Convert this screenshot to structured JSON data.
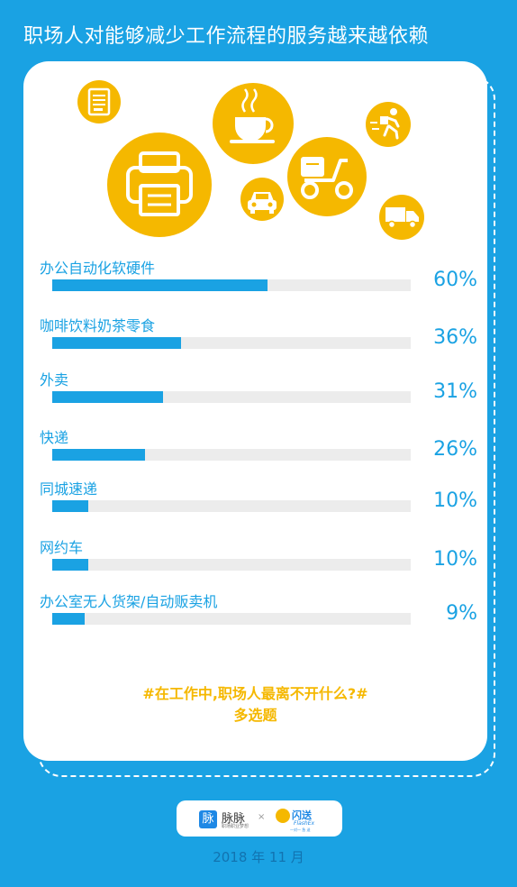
{
  "title": "职场人对能够减少工作流程的服务越来越依赖",
  "chart_data": {
    "type": "bar",
    "orientation": "horizontal",
    "categories": [
      "办公自动化软硬件",
      "咖啡饮料奶茶零食",
      "外卖",
      "快递",
      "同城速递",
      "网约车",
      "办公室无人货架/自动贩卖机"
    ],
    "values": [
      60,
      36,
      31,
      26,
      10,
      10,
      9
    ],
    "value_labels": [
      "60%",
      "36%",
      "31%",
      "26%",
      "10%",
      "10%",
      "9%"
    ],
    "xlim": [
      0,
      100
    ],
    "colors": {
      "bar": "#1aa2e3",
      "track": "#ececec",
      "label": "#1aa2e3"
    }
  },
  "footnote": {
    "line1": "#在工作中,职场人最离不开什么?#",
    "line2": "多选题"
  },
  "icons": [
    "vending-machine-icon",
    "coffee-cup-icon",
    "delivery-runner-icon",
    "printer-icon",
    "scooter-icon",
    "car-icon",
    "truck-icon"
  ],
  "logos": {
    "maimai_mark": "脉",
    "maimai_name": "脉脉",
    "maimai_slogan": "职场职业梦想",
    "separator": "×",
    "flash_name": "闪送",
    "flash_en": "FlashEx",
    "flash_slogan": "一对一 急 送"
  },
  "date": "2018 年 11 月",
  "colors": {
    "background": "#1aa2e3",
    "accent": "#f5b800",
    "card": "#ffffff"
  }
}
